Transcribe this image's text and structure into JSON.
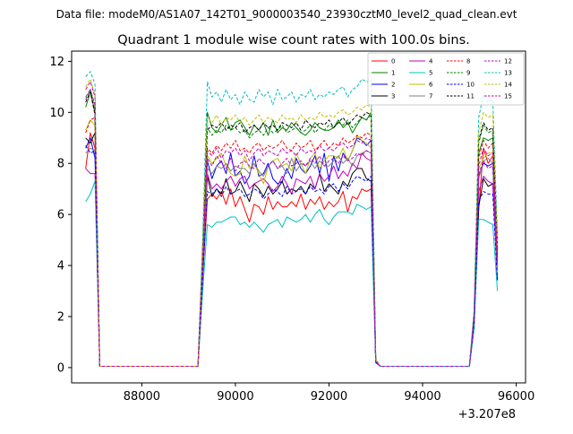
{
  "figure": {
    "suptitle": "Data file: modeM0/AS1A07_142T01_9000003540_23930cztM0_level2_quad_clean.evt",
    "offset_label": "+3.207e8"
  },
  "chart_data": {
    "type": "line",
    "title": "Quadrant 1 module wise count rates with 100.0s bins.",
    "xlabel": "",
    "ylabel": "",
    "x_offset": 320700000,
    "xlim": [
      86500,
      96200
    ],
    "ylim": [
      -0.6,
      12.4
    ],
    "x_ticks": [
      88000,
      90000,
      92000,
      94000,
      96000
    ],
    "x_tick_labels": [
      "88000",
      "90000",
      "92000",
      "94000",
      "96000"
    ],
    "y_ticks": [
      0,
      2,
      4,
      6,
      8,
      10,
      12
    ],
    "y_tick_labels": [
      "0",
      "2",
      "4",
      "6",
      "8",
      "10",
      "12"
    ],
    "grid": false,
    "legend_placement": "top-right",
    "legend_columns": 4,
    "x": [
      86800,
      86900,
      87000,
      87100,
      89200,
      89300,
      89400,
      89500,
      89600,
      89700,
      89800,
      89900,
      90000,
      90100,
      90200,
      90300,
      90400,
      90500,
      90600,
      90700,
      90800,
      90900,
      91000,
      91100,
      91200,
      91300,
      91400,
      91500,
      91600,
      91700,
      91800,
      91900,
      92000,
      92100,
      92200,
      92300,
      92400,
      92500,
      92600,
      92700,
      92800,
      92900,
      93000,
      93100,
      95000,
      95100,
      95200,
      95300,
      95400,
      95500,
      95600
    ],
    "series": [
      {
        "name": "0",
        "color": "#ff0000",
        "dash": "solid",
        "values": [
          7.8,
          9.2,
          8.6,
          0.05,
          0.05,
          3.6,
          6.6,
          6.8,
          6.6,
          6.9,
          6.4,
          7.0,
          6.3,
          6.7,
          6.2,
          5.7,
          6.4,
          6.3,
          6.0,
          6.7,
          6.2,
          6.5,
          6.3,
          6.3,
          6.5,
          6.3,
          6.8,
          6.2,
          6.6,
          6.4,
          6.7,
          6.2,
          6.5,
          6.3,
          6.5,
          6.9,
          6.1,
          6.7,
          6.6,
          7.0,
          6.9,
          7.0,
          0.2,
          0.05,
          0.05,
          1.8,
          6.2,
          8.6,
          8.0,
          8.3,
          3.8
        ]
      },
      {
        "name": "1",
        "color": "#008000",
        "dash": "solid",
        "values": [
          10.2,
          10.8,
          10.0,
          0.05,
          0.05,
          4.8,
          10.0,
          9.4,
          9.2,
          9.5,
          9.8,
          9.3,
          9.6,
          9.7,
          9.4,
          9.1,
          9.5,
          9.3,
          9.6,
          9.1,
          9.7,
          9.2,
          9.4,
          9.3,
          9.6,
          9.4,
          9.2,
          9.1,
          9.3,
          9.6,
          9.4,
          9.3,
          9.3,
          9.4,
          9.7,
          9.4,
          9.6,
          9.2,
          9.5,
          9.8,
          9.7,
          10.0,
          0.3,
          0.05,
          0.05,
          2.0,
          8.4,
          9.0,
          8.9,
          9.0,
          4.6
        ]
      },
      {
        "name": "2",
        "color": "#0000ff",
        "dash": "solid",
        "values": [
          8.6,
          9.0,
          8.2,
          0.05,
          0.05,
          4.0,
          8.1,
          7.4,
          7.9,
          8.1,
          7.6,
          8.4,
          7.5,
          7.7,
          7.2,
          7.5,
          8.3,
          7.5,
          7.6,
          8.0,
          7.4,
          7.2,
          7.3,
          7.8,
          7.4,
          8.2,
          7.8,
          7.6,
          7.9,
          8.3,
          7.6,
          8.4,
          7.3,
          8.3,
          7.7,
          8.4,
          8.1,
          8.5,
          9.0,
          8.9,
          8.7,
          8.9,
          0.2,
          0.05,
          0.05,
          1.9,
          7.5,
          8.0,
          7.9,
          8.0,
          3.5
        ]
      },
      {
        "name": "3",
        "color": "#000000",
        "dash": "solid",
        "values": [
          9.0,
          8.8,
          9.2,
          0.05,
          0.05,
          3.6,
          7.5,
          6.7,
          7.0,
          6.8,
          7.4,
          6.8,
          6.9,
          7.3,
          6.9,
          6.5,
          7.2,
          7.0,
          6.7,
          7.1,
          6.8,
          7.0,
          7.3,
          6.8,
          7.0,
          6.9,
          7.1,
          6.8,
          7.2,
          7.0,
          7.6,
          6.9,
          7.2,
          7.0,
          6.8,
          7.3,
          7.1,
          7.6,
          7.8,
          7.8,
          7.4,
          7.3,
          0.2,
          0.05,
          0.05,
          1.6,
          6.3,
          7.4,
          7.1,
          7.2,
          4.4
        ]
      },
      {
        "name": "4",
        "color": "#c000c0",
        "dash": "solid",
        "values": [
          7.8,
          7.6,
          7.6,
          0.05,
          0.05,
          3.8,
          7.6,
          7.0,
          7.2,
          7.0,
          7.3,
          7.5,
          7.1,
          7.4,
          7.5,
          7.0,
          7.2,
          7.3,
          7.4,
          7.2,
          6.9,
          7.1,
          7.5,
          7.2,
          6.8,
          7.4,
          7.3,
          7.2,
          7.5,
          7.0,
          7.6,
          7.3,
          7.5,
          7.9,
          7.4,
          7.7,
          7.5,
          8.0,
          7.8,
          8.4,
          8.2,
          8.1,
          0.2,
          0.05,
          0.05,
          1.7,
          6.9,
          7.5,
          7.3,
          7.2,
          3.5
        ]
      },
      {
        "name": "5",
        "color": "#00bfbf",
        "dash": "solid",
        "values": [
          6.5,
          6.8,
          7.3,
          0.05,
          0.05,
          3.0,
          5.6,
          5.5,
          5.7,
          5.7,
          5.8,
          5.9,
          5.9,
          5.6,
          5.7,
          5.5,
          5.7,
          5.5,
          5.3,
          5.6,
          5.7,
          5.8,
          5.5,
          5.9,
          5.8,
          5.7,
          5.8,
          6.0,
          5.7,
          6.0,
          6.2,
          5.8,
          5.6,
          5.9,
          6.1,
          6.1,
          6.1,
          6.0,
          6.4,
          6.3,
          6.2,
          6.3,
          0.2,
          0.05,
          0.05,
          1.5,
          5.8,
          5.8,
          5.7,
          5.6,
          3.0
        ]
      },
      {
        "name": "6",
        "color": "#bfbf00",
        "dash": "solid",
        "values": [
          9.3,
          9.7,
          9.5,
          0.05,
          0.05,
          4.0,
          8.3,
          8.0,
          8.2,
          8.4,
          7.9,
          7.6,
          7.5,
          7.6,
          8.3,
          7.8,
          8.0,
          7.6,
          7.2,
          7.9,
          8.1,
          8.2,
          7.9,
          8.0,
          7.7,
          8.4,
          8.0,
          7.6,
          8.2,
          8.4,
          7.8,
          8.1,
          8.3,
          8.3,
          8.2,
          8.6,
          8.1,
          8.5,
          9.1,
          8.9,
          8.8,
          8.6,
          0.3,
          0.05,
          0.05,
          1.9,
          7.8,
          8.2,
          8.4,
          8.4,
          3.7
        ]
      },
      {
        "name": "7",
        "color": "#808080",
        "dash": "solid",
        "values": [
          8.4,
          8.6,
          8.5,
          0.05,
          0.05,
          3.7,
          7.8,
          7.6,
          7.9,
          7.8,
          8.0,
          7.7,
          7.9,
          7.8,
          7.8,
          7.6,
          8.0,
          7.7,
          7.5,
          7.9,
          8.1,
          7.8,
          7.9,
          7.6,
          8.2,
          7.7,
          8.0,
          7.9,
          8.1,
          7.8,
          8.1,
          7.9,
          7.9,
          8.1,
          8.3,
          8.0,
          8.2,
          7.9,
          8.3,
          8.4,
          8.5,
          8.4,
          0.2,
          0.05,
          0.05,
          1.8,
          7.4,
          8.1,
          8.2,
          8.0,
          3.9
        ]
      },
      {
        "name": "8",
        "color": "#ff0000",
        "dash": "dashed",
        "values": [
          9.2,
          9.7,
          9.8,
          0.05,
          0.05,
          4.2,
          8.6,
          8.4,
          8.7,
          8.5,
          8.8,
          8.6,
          8.9,
          8.5,
          8.6,
          8.4,
          8.7,
          8.8,
          8.5,
          8.7,
          8.6,
          8.7,
          8.9,
          8.6,
          8.5,
          8.8,
          8.6,
          8.7,
          8.9,
          8.5,
          8.7,
          8.9,
          8.6,
          8.8,
          8.7,
          9.0,
          8.8,
          8.9,
          9.1,
          9.0,
          9.2,
          9.1,
          0.2,
          0.05,
          0.05,
          2.0,
          8.2,
          8.9,
          8.6,
          8.8,
          4.2
        ]
      },
      {
        "name": "9",
        "color": "#008000",
        "dash": "dashed",
        "values": [
          10.6,
          10.9,
          10.1,
          0.05,
          0.05,
          4.8,
          9.4,
          9.1,
          9.3,
          9.2,
          9.5,
          9.3,
          9.4,
          9.2,
          9.3,
          9.0,
          9.2,
          9.3,
          9.1,
          9.4,
          9.2,
          9.3,
          9.5,
          9.2,
          9.3,
          9.4,
          9.2,
          9.3,
          9.5,
          9.2,
          9.4,
          9.3,
          9.5,
          9.4,
          9.6,
          9.5,
          9.7,
          9.4,
          9.6,
          9.8,
          9.7,
          9.9,
          0.3,
          0.05,
          0.05,
          2.1,
          8.8,
          9.5,
          9.2,
          9.3,
          4.7
        ]
      },
      {
        "name": "10",
        "color": "#0000ff",
        "dash": "dashed",
        "values": [
          8.7,
          8.4,
          8.5,
          0.05,
          0.05,
          3.5,
          6.9,
          6.8,
          7.0,
          6.7,
          7.1,
          6.8,
          6.9,
          7.0,
          6.7,
          6.8,
          7.0,
          6.9,
          6.6,
          6.8,
          7.0,
          6.9,
          6.7,
          7.1,
          6.8,
          6.9,
          7.0,
          6.8,
          7.1,
          6.9,
          7.0,
          6.8,
          7.1,
          7.2,
          6.9,
          7.2,
          7.0,
          7.3,
          7.5,
          7.4,
          7.3,
          7.5,
          0.2,
          0.05,
          0.05,
          1.7,
          6.5,
          6.9,
          6.8,
          6.8,
          3.4
        ]
      },
      {
        "name": "11",
        "color": "#000000",
        "dash": "dashed",
        "values": [
          10.4,
          10.8,
          9.9,
          0.05,
          0.05,
          4.6,
          9.3,
          9.5,
          9.4,
          9.6,
          9.3,
          9.5,
          9.4,
          9.6,
          9.2,
          9.4,
          9.5,
          9.3,
          9.6,
          9.4,
          9.5,
          9.3,
          9.6,
          9.5,
          9.4,
          9.6,
          9.3,
          9.7,
          9.5,
          9.4,
          9.6,
          9.5,
          9.7,
          9.4,
          9.6,
          9.8,
          9.5,
          9.7,
          9.9,
          9.8,
          10.0,
          9.9,
          0.3,
          0.05,
          0.05,
          2.1,
          8.9,
          9.6,
          9.3,
          9.4,
          4.9
        ]
      },
      {
        "name": "12",
        "color": "#c000c0",
        "dash": "dashed",
        "values": [
          10.9,
          11.2,
          10.6,
          0.05,
          0.05,
          4.4,
          8.2,
          7.9,
          8.3,
          8.0,
          7.8,
          8.2,
          7.7,
          8.0,
          8.1,
          7.9,
          7.8,
          8.2,
          8.0,
          7.9,
          8.1,
          7.8,
          8.0,
          8.2,
          7.9,
          8.0,
          8.1,
          7.9,
          8.2,
          8.0,
          8.3,
          7.9,
          8.1,
          8.2,
          8.0,
          8.3,
          8.1,
          8.2,
          8.4,
          8.3,
          8.5,
          8.4,
          0.2,
          0.05,
          0.05,
          1.9,
          7.6,
          8.1,
          7.8,
          7.9,
          4.0
        ]
      },
      {
        "name": "13",
        "color": "#00bfbf",
        "dash": "dashed",
        "values": [
          11.4,
          11.6,
          11.1,
          0.05,
          0.05,
          5.1,
          11.2,
          10.6,
          10.8,
          10.4,
          10.9,
          10.5,
          10.7,
          10.3,
          10.8,
          10.5,
          10.4,
          10.9,
          10.6,
          10.8,
          10.3,
          10.9,
          10.5,
          10.6,
          10.8,
          10.4,
          10.7,
          10.6,
          10.9,
          10.5,
          10.7,
          10.6,
          10.8,
          10.7,
          10.9,
          11.0,
          10.6,
          10.9,
          11.0,
          11.3,
          11.2,
          11.3,
          0.3,
          0.05,
          0.05,
          2.3,
          9.8,
          10.7,
          10.4,
          10.5,
          5.2
        ]
      },
      {
        "name": "14",
        "color": "#bfbf00",
        "dash": "dashed",
        "values": [
          11.0,
          11.3,
          10.7,
          0.05,
          0.05,
          4.7,
          9.8,
          9.6,
          9.9,
          9.5,
          9.8,
          9.7,
          9.9,
          9.6,
          9.8,
          9.5,
          9.7,
          9.9,
          9.6,
          9.8,
          9.7,
          9.6,
          9.9,
          9.7,
          9.8,
          9.6,
          9.9,
          9.7,
          9.8,
          9.7,
          10.0,
          9.8,
          9.9,
          9.8,
          10.0,
          10.1,
          9.9,
          10.0,
          10.2,
          10.1,
          10.3,
          10.2,
          0.3,
          0.05,
          0.05,
          2.2,
          9.2,
          10.0,
          9.8,
          9.9,
          4.8
        ]
      },
      {
        "name": "15",
        "color": "#c000c0",
        "dash": "dashed",
        "values": [
          10.5,
          10.9,
          10.3,
          0.05,
          0.05,
          4.3,
          8.5,
          8.3,
          8.6,
          8.2,
          8.5,
          8.4,
          8.6,
          8.3,
          8.5,
          8.1,
          8.4,
          8.6,
          8.3,
          8.5,
          8.4,
          8.3,
          8.6,
          8.4,
          8.5,
          8.3,
          8.6,
          8.4,
          8.5,
          8.4,
          8.7,
          8.5,
          8.6,
          8.5,
          8.7,
          8.8,
          8.6,
          8.7,
          8.9,
          8.8,
          9.0,
          8.9,
          0.2,
          0.05,
          0.05,
          2.0,
          7.9,
          8.6,
          8.3,
          8.4,
          4.3
        ]
      }
    ]
  }
}
